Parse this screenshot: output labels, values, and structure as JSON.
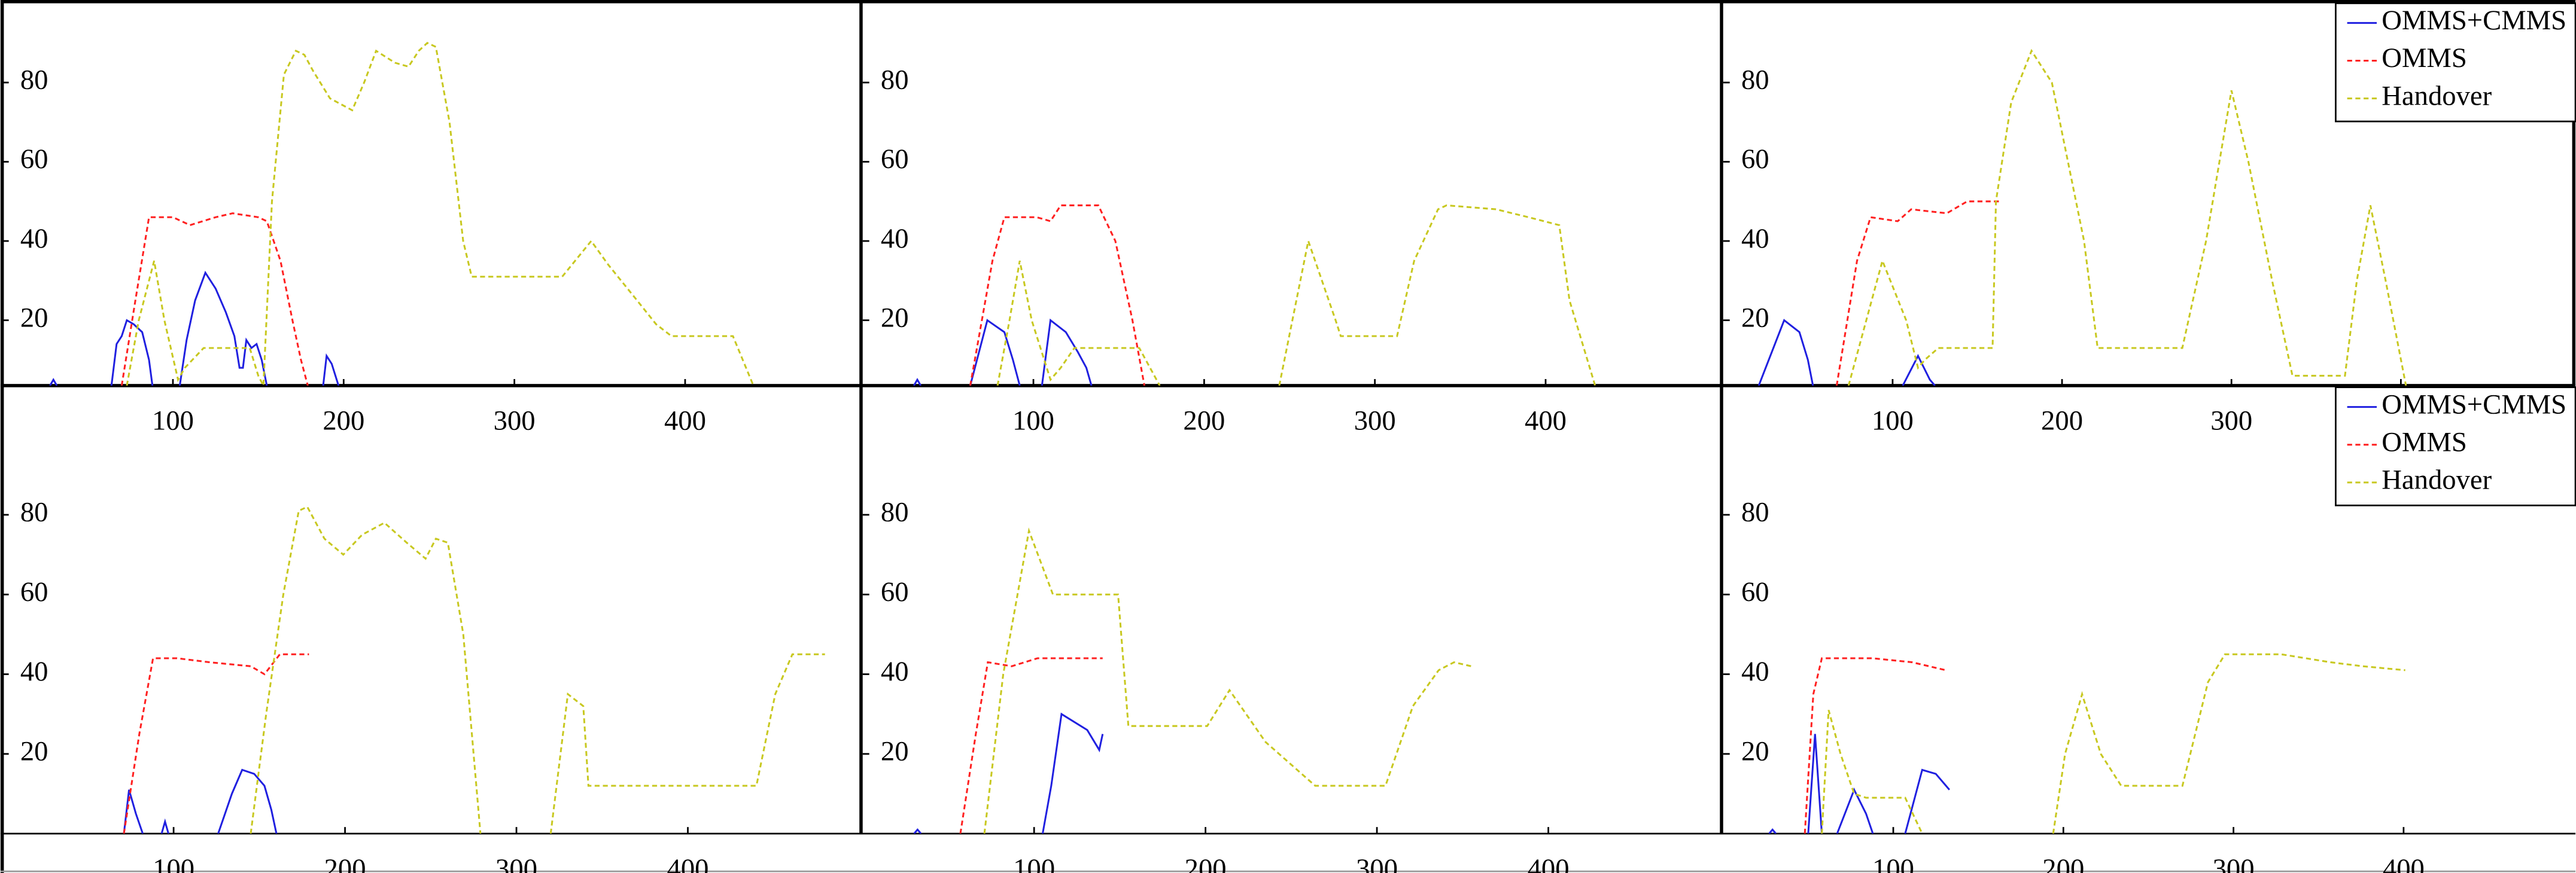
{
  "chart_data": [
    {
      "type": "line",
      "xlim": [
        0,
        504
      ],
      "ylim": [
        3.5,
        100
      ],
      "xticks": [
        100,
        200,
        300,
        400
      ],
      "yticks": [
        20,
        40,
        60,
        80
      ],
      "series": [
        {
          "color": "#2020e0",
          "linestyle": "solid",
          "x": [
            28,
            30,
            32,
            null,
            64,
            67,
            70,
            73,
            77,
            82,
            86,
            88,
            null,
            104,
            108,
            113,
            119,
            125,
            131,
            136,
            139,
            141,
            143,
            146,
            149,
            152,
            155,
            null,
            188,
            190,
            193,
            197
          ],
          "values": [
            3.5,
            5,
            3.5,
            null,
            3.5,
            14,
            16,
            20,
            19,
            17,
            10,
            3.5,
            null,
            3.5,
            15,
            25,
            32,
            28,
            22,
            16,
            8,
            8,
            15,
            13,
            14,
            10,
            3.5,
            null,
            3.5,
            11,
            9,
            3.5
          ]
        },
        {
          "color": "#ff2020",
          "linestyle": "dashed",
          "x": [
            70,
            78,
            86,
            100,
            110,
            125,
            135,
            150,
            155,
            163,
            170,
            175,
            179
          ],
          "values": [
            3.5,
            25,
            46,
            46,
            44,
            46,
            47,
            46,
            45,
            35,
            20,
            10,
            3.5
          ]
        },
        {
          "color": "#c8c820",
          "linestyle": "dashed",
          "x": [
            73,
            80,
            89,
            95,
            103,
            107,
            118,
            145,
            150,
            153,
            158,
            165,
            172,
            177,
            182,
            192,
            205,
            212,
            219,
            230,
            238,
            244,
            249,
            254,
            262,
            270,
            275,
            328,
            345,
            355,
            370,
            383,
            392,
            428,
            440
          ],
          "values": [
            3.5,
            20,
            35,
            20,
            5,
            8,
            13,
            13,
            6,
            3.5,
            50,
            82,
            88,
            87,
            83,
            76,
            73,
            80,
            88,
            85,
            84,
            88,
            90,
            89,
            70,
            40,
            31,
            31,
            40,
            34,
            26,
            19,
            16,
            16,
            3.5
          ]
        }
      ]
    },
    {
      "type": "line",
      "xlim": [
        0,
        504
      ],
      "ylim": [
        3.5,
        100
      ],
      "xticks": [
        100,
        200,
        300,
        400
      ],
      "yticks": [
        20,
        40,
        60,
        80
      ],
      "series": [
        {
          "color": "#2020e0",
          "linestyle": "solid",
          "x": [
            30,
            32,
            34,
            null,
            63,
            73,
            83,
            88,
            92,
            null,
            105,
            110,
            119,
            126,
            131,
            134
          ],
          "values": [
            3.5,
            5,
            3.5,
            null,
            3.5,
            20,
            17,
            10,
            3.5,
            null,
            3.5,
            20,
            17,
            12,
            8,
            3.5
          ]
        },
        {
          "color": "#ff2020",
          "linestyle": "dashed",
          "x": [
            63,
            76,
            83,
            102,
            110,
            116,
            138,
            148,
            158,
            165
          ],
          "values": [
            3.5,
            35,
            46,
            46,
            45,
            49,
            49,
            40,
            20,
            3.5
          ]
        },
        {
          "color": "#c8c820",
          "linestyle": "dashed",
          "x": [
            79,
            86,
            92,
            99,
            110,
            116,
            124,
            162,
            174,
            null,
            244,
            261,
            277,
            280,
            313,
            323,
            337,
            342,
            371,
            390,
            408,
            414,
            429
          ],
          "values": [
            3.5,
            20,
            35,
            20,
            5,
            8,
            13,
            13,
            3.5,
            null,
            3.5,
            40,
            20,
            16,
            16,
            35,
            48,
            49,
            48,
            46,
            44,
            25,
            3.5
          ]
        }
      ]
    },
    {
      "type": "line",
      "xlim": [
        0,
        504
      ],
      "ylim": [
        3.5,
        100
      ],
      "xticks": [
        100,
        200,
        300,
        400
      ],
      "yticks": [
        20,
        40,
        60,
        80
      ],
      "legend": "upper right",
      "series": [
        {
          "name": "OMMS+CMMS",
          "color": "#2020e0",
          "linestyle": "solid",
          "x": [
            21,
            36,
            45,
            50,
            53,
            null,
            106,
            115,
            122,
            125
          ],
          "values": [
            3.5,
            20,
            17,
            10,
            3.5,
            null,
            3.5,
            11,
            5,
            3.5
          ]
        },
        {
          "name": "OMMS",
          "color": "#ff2020",
          "linestyle": "dashed",
          "x": [
            67,
            79,
            87,
            103,
            111,
            132,
            144,
            163
          ],
          "values": [
            3.5,
            35,
            46,
            45,
            48,
            47,
            50,
            50
          ]
        },
        {
          "name": "Handover",
          "color": "#c8c820",
          "linestyle": "dashed",
          "x": [
            74,
            94,
            108,
            115,
            119,
            127,
            159,
            161,
            170,
            182,
            194,
            213,
            221,
            271,
            285,
            300,
            310,
            324,
            336,
            367,
            374,
            382,
            391,
            403
          ],
          "values": [
            3.5,
            35,
            20,
            8,
            10,
            13,
            13,
            50,
            75,
            88,
            80,
            40,
            13,
            13,
            40,
            78,
            60,
            30,
            6,
            6,
            30,
            49,
            30,
            3.5
          ]
        }
      ]
    },
    {
      "type": "line",
      "xlim": [
        0,
        502
      ],
      "ylim": [
        0,
        112
      ],
      "xticks": [
        100,
        200,
        300,
        400
      ],
      "yticks": [
        20,
        40,
        60,
        80
      ],
      "series": [
        {
          "color": "#2020e0",
          "linestyle": "solid",
          "x": [
            71,
            74,
            78,
            82,
            null,
            93,
            95,
            97,
            null,
            126,
            134,
            140,
            147,
            153,
            157,
            160
          ],
          "values": [
            0,
            11,
            5,
            0,
            null,
            0,
            3,
            0,
            null,
            0,
            10,
            16,
            15,
            12,
            6,
            0
          ]
        },
        {
          "color": "#ff2020",
          "linestyle": "dashed",
          "x": [
            71,
            80,
            88,
            102,
            121,
            145,
            153,
            162,
            179
          ],
          "values": [
            0,
            25,
            44,
            44,
            43,
            42,
            40,
            45,
            45
          ]
        },
        {
          "color": "#c8c820",
          "linestyle": "dashed",
          "x": [
            145,
            154,
            164,
            173,
            178,
            188,
            199,
            210,
            223,
            236,
            247,
            253,
            260,
            269,
            279,
            null,
            320,
            330,
            339,
            342,
            440,
            451,
            461,
            480
          ],
          "values": [
            0,
            30,
            60,
            81,
            82,
            74,
            70,
            75,
            78,
            73,
            69,
            74,
            73,
            50,
            0,
            null,
            0,
            35,
            32,
            12,
            12,
            35,
            45,
            45
          ]
        }
      ]
    },
    {
      "type": "line",
      "xlim": [
        0,
        502
      ],
      "ylim": [
        0,
        112
      ],
      "xticks": [
        100,
        200,
        300,
        400
      ],
      "yticks": [
        20,
        40,
        60,
        80
      ],
      "series": [
        {
          "color": "#2020e0",
          "linestyle": "solid",
          "x": [
            30,
            32,
            34,
            null,
            105,
            110,
            116,
            131,
            138,
            140
          ],
          "values": [
            0,
            1,
            0,
            null,
            0,
            12,
            30,
            26,
            21,
            25
          ]
        },
        {
          "color": "#ff2020",
          "linestyle": "dashed",
          "x": [
            57,
            66,
            73,
            87,
            102,
            111,
            140
          ],
          "values": [
            0,
            25,
            43,
            42,
            44,
            44,
            44
          ]
        },
        {
          "color": "#c8c820",
          "linestyle": "dashed",
          "x": [
            71,
            82,
            97,
            111,
            149,
            155,
            201,
            214,
            235,
            264,
            305,
            321,
            336,
            345,
            355
          ],
          "values": [
            0,
            40,
            76,
            60,
            60,
            27,
            27,
            36,
            23,
            12,
            12,
            32,
            41,
            43,
            42
          ]
        }
      ]
    },
    {
      "type": "line",
      "xlim": [
        0,
        502
      ],
      "ylim": [
        0,
        112
      ],
      "xticks": [
        100,
        200,
        300,
        400
      ],
      "yticks": [
        20,
        40,
        60,
        80
      ],
      "legend": "upper right",
      "series": [
        {
          "name": "OMMS+CMMS",
          "color": "#2020e0",
          "linestyle": "solid",
          "x": [
            27,
            29,
            31,
            null,
            50,
            54,
            58,
            null,
            67,
            77,
            84,
            88,
            null,
            107,
            117,
            125,
            131,
            133
          ],
          "values": [
            0,
            1,
            0,
            null,
            0,
            25,
            0,
            null,
            0,
            11,
            5,
            0,
            null,
            0,
            16,
            15,
            12,
            11
          ]
        },
        {
          "name": "OMMS",
          "color": "#ff2020",
          "linestyle": "dashed",
          "x": [
            48,
            53,
            58,
            88,
            111,
            131
          ],
          "values": [
            0,
            35,
            44,
            44,
            43,
            41
          ]
        },
        {
          "name": "Handover",
          "color": "#c8c820",
          "linestyle": "dashed",
          "x": [
            58,
            62,
            69,
            77,
            84,
            107,
            117,
            null,
            194,
            201,
            211,
            222,
            234,
            270,
            285,
            295,
            328,
            357,
            376,
            401
          ],
          "values": [
            0,
            31,
            20,
            10,
            9,
            9,
            0,
            null,
            0,
            20,
            35,
            20,
            12,
            12,
            38,
            45,
            45,
            43,
            42,
            41
          ]
        }
      ]
    }
  ]
}
